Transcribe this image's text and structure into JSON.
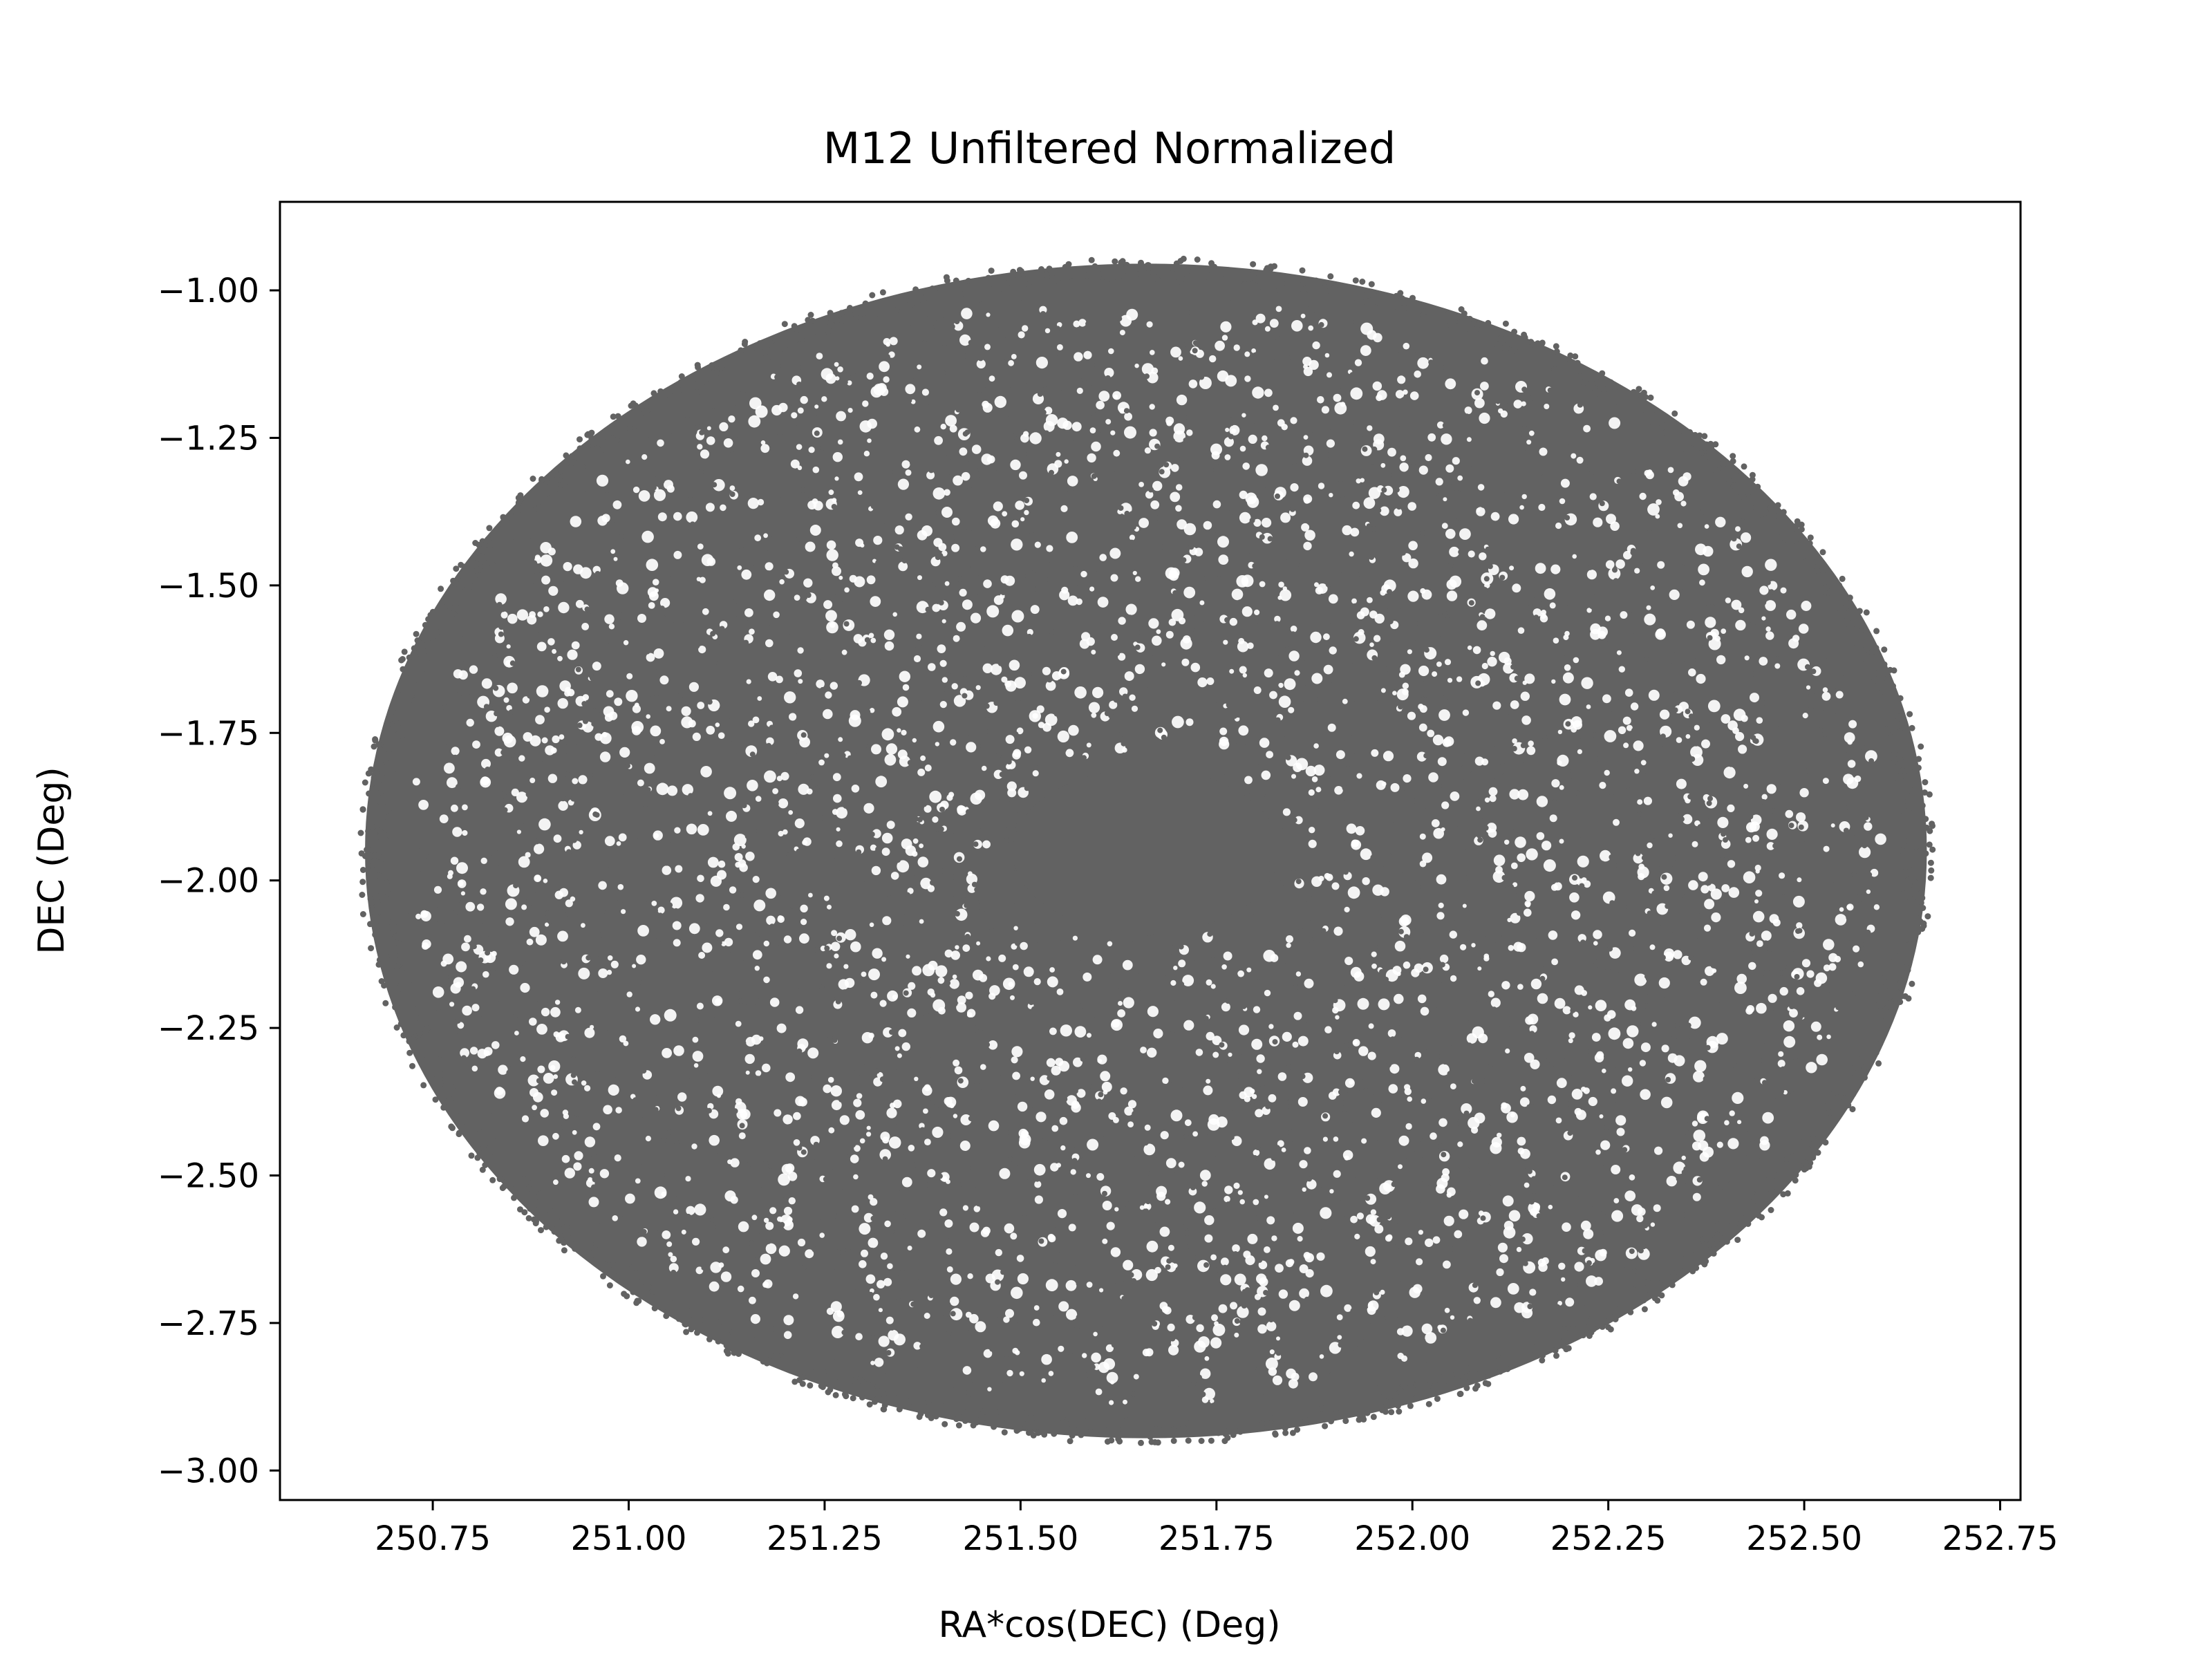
{
  "chart_data": {
    "type": "scatter",
    "title": "M12 Unfiltered Normalized",
    "xlabel": "RA*cos(DEC) (Deg)",
    "ylabel": "DEC (Deg)",
    "xlim": [
      250.555,
      252.776
    ],
    "ylim": [
      -3.05,
      -0.85
    ],
    "xticks": [
      250.75,
      251.0,
      251.25,
      251.5,
      251.75,
      252.0,
      252.25,
      252.5,
      252.75
    ],
    "xtick_labels": [
      "250.75",
      "251.00",
      "251.25",
      "251.50",
      "251.75",
      "252.00",
      "252.25",
      "252.50",
      "252.75"
    ],
    "yticks": [
      -1.0,
      -1.25,
      -1.5,
      -1.75,
      -2.0,
      -2.25,
      -2.5,
      -2.75,
      -3.0
    ],
    "ytick_labels": [
      "−1.00",
      "−1.25",
      "−1.50",
      "−1.75",
      "−2.00",
      "−2.25",
      "−2.50",
      "−2.75",
      "−3.00"
    ],
    "grid": false,
    "legend": null,
    "marker_color": "#626262",
    "series": [
      {
        "distribution": "filled ellipse of uniformly scattered points with a dense core",
        "center": [
          251.66,
          -1.95
        ],
        "semi_axis_x": 1.0,
        "semi_axis_y": 1.0,
        "x_extent": [
          250.66,
          252.67
        ],
        "y_extent": [
          -2.95,
          -0.95
        ],
        "core_center": [
          251.66,
          -1.95
        ],
        "core_semi_axis_x": 0.17,
        "core_semi_axis_y": 0.14
      }
    ]
  }
}
